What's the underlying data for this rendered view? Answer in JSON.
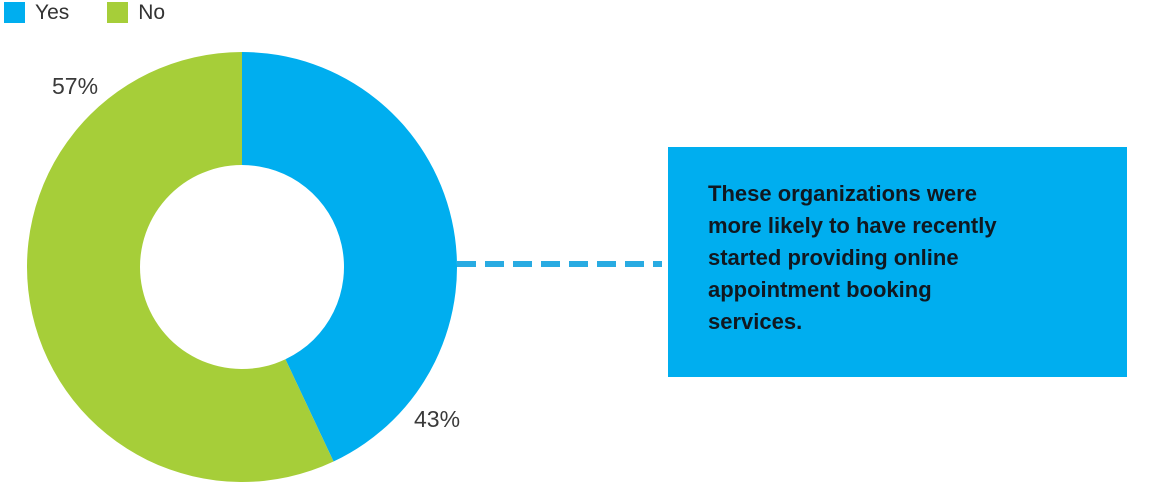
{
  "chart_data": {
    "type": "pie",
    "subtype": "donut",
    "categories": [
      "Yes",
      "No"
    ],
    "values": [
      43,
      57
    ],
    "colors": [
      "#00AEEF",
      "#A6CE39"
    ],
    "data_labels": [
      "43%",
      "57%"
    ],
    "start_angle_deg": 0,
    "direction": "clockwise",
    "inner_radius_ratio": 0.474,
    "legend_position": "top-left",
    "title": ""
  },
  "legend": {
    "items": [
      {
        "label": "Yes",
        "color": "#00AEEF"
      },
      {
        "label": "No",
        "color": "#A6CE39"
      }
    ]
  },
  "annotations": {
    "pct_no": "57%",
    "pct_yes": "43%"
  },
  "connector": {
    "color": "#29ABE2",
    "style": "dashed"
  },
  "callout": {
    "text": "These organizations were\nmore likely to have recently\nstarted providing online\nappointment booking\nservices.",
    "background": "#00AEEF",
    "text_color": "#101820"
  }
}
